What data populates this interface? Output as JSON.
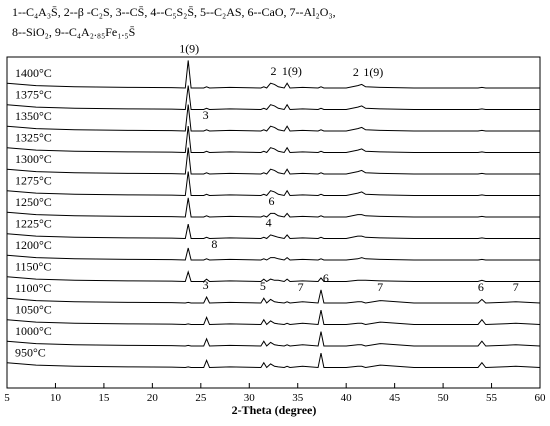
{
  "chart_data": {
    "type": "line",
    "legend_lines": [
      "1--C₄A₃S̄, 2--β -C₂S, 3--CS̄, 4--C₅S₂S̄, 5--C₂AS, 6--CaO, 7--Al₂O₃,",
      "8--SiO₂, 9--C₄A₂.₈₅Fe₁.₅S̄"
    ],
    "x_label": "2-Theta (degree)",
    "xlim": [
      5,
      60
    ],
    "xticks": [
      5,
      10,
      15,
      20,
      25,
      30,
      35,
      40,
      45,
      50,
      55,
      60
    ],
    "color": "#000000",
    "x": [
      5,
      8,
      12,
      18,
      22,
      23.4,
      23.7,
      24.0,
      25.3,
      25.6,
      25.9,
      28,
      31.2,
      31.5,
      31.8,
      32.2,
      32.6,
      33.0,
      33.6,
      33.9,
      34.2,
      35.5,
      37.1,
      37.4,
      37.7,
      40,
      41.2,
      41.6,
      42.0,
      43.5,
      47,
      53.6,
      54.0,
      54.4,
      57.5,
      60
    ],
    "series": [
      {
        "name": "1400°C",
        "values": [
          4,
          2,
          1,
          0.5,
          0.3,
          0,
          23,
          0,
          0,
          1,
          0,
          0.5,
          0,
          1,
          0,
          4,
          3,
          1,
          0,
          4,
          0,
          0.5,
          0,
          1,
          0,
          0,
          2,
          3,
          1,
          0.5,
          0,
          0,
          0.5,
          0,
          0,
          0
        ],
        "peak_labels": [
          {
            "text": "1(9)",
            "x": 23.8
          },
          {
            "text": "2",
            "x": 32.5
          },
          {
            "text": "1(9)",
            "x": 34.4
          },
          {
            "text": "2",
            "x": 41.0
          },
          {
            "text": "1(9)",
            "x": 42.8
          }
        ]
      },
      {
        "name": "1375°C",
        "values": [
          4,
          2,
          1,
          0.5,
          0.3,
          0,
          20,
          0,
          0,
          1,
          0,
          0.5,
          0,
          1,
          0,
          4,
          3,
          1,
          0,
          4,
          0,
          0.5,
          0,
          1,
          0,
          0,
          2,
          3,
          1,
          0.5,
          0,
          0,
          0.5,
          0,
          0,
          0
        ],
        "peak_labels": []
      },
      {
        "name": "1350°C",
        "values": [
          4,
          2,
          1,
          0.5,
          0.3,
          0,
          22,
          0,
          0,
          1,
          0,
          0.5,
          0,
          1,
          0,
          4,
          3,
          1,
          0,
          4,
          0,
          0.5,
          0,
          1,
          0,
          0,
          2,
          3,
          1,
          0.5,
          0,
          0,
          0.5,
          0,
          0,
          0
        ],
        "peak_labels": [
          {
            "text": "3",
            "x": 25.5
          }
        ]
      },
      {
        "name": "1325°C",
        "values": [
          4,
          2,
          1,
          0.5,
          0.3,
          0,
          22,
          0,
          0,
          1,
          0,
          0.5,
          0,
          1,
          0,
          4,
          3,
          1,
          0,
          4,
          0,
          0.5,
          0,
          1,
          0,
          0,
          2,
          3,
          1,
          0.5,
          0,
          0,
          0.5,
          0,
          0,
          0
        ],
        "peak_labels": []
      },
      {
        "name": "1300°C",
        "values": [
          4,
          2,
          1,
          0.5,
          0.3,
          0,
          22,
          0,
          0,
          1,
          0,
          0.5,
          0,
          1,
          0,
          4,
          3,
          1,
          0,
          4,
          0,
          0.5,
          0,
          1,
          0,
          0,
          2,
          3,
          1,
          0.5,
          0,
          0,
          0.5,
          0,
          0,
          0
        ],
        "peak_labels": []
      },
      {
        "name": "1275°C",
        "values": [
          4,
          2,
          1,
          0.5,
          0.3,
          0,
          20,
          0,
          0,
          1,
          0,
          0.5,
          0,
          1,
          0,
          4,
          3,
          1,
          0,
          4,
          0,
          0.5,
          0,
          1,
          0,
          0,
          2,
          3,
          1,
          0.5,
          0,
          0,
          0.5,
          0,
          0,
          0
        ],
        "peak_labels": []
      },
      {
        "name": "1250°C",
        "values": [
          4,
          2,
          1,
          0.5,
          0.3,
          0,
          16,
          0,
          0,
          1,
          0,
          0.5,
          0,
          1,
          0,
          3,
          3,
          1,
          0,
          3,
          0,
          0.5,
          0,
          1,
          0,
          0,
          2,
          2,
          1,
          0.5,
          0,
          0,
          0.5,
          0,
          0,
          0
        ],
        "peak_labels": [
          {
            "text": "6",
            "x": 32.3
          }
        ]
      },
      {
        "name": "1225°C",
        "values": [
          4,
          2,
          1,
          0.5,
          0.3,
          0,
          12,
          0,
          0,
          1,
          0,
          0.5,
          0,
          1,
          0,
          3,
          2,
          1,
          0,
          3,
          0,
          0.5,
          0,
          1,
          0,
          0,
          2,
          2,
          1,
          0.5,
          0,
          0,
          0.5,
          0,
          0,
          0
        ],
        "peak_labels": [
          {
            "text": "4",
            "x": 32.0
          }
        ]
      },
      {
        "name": "1200°C",
        "values": [
          4,
          2,
          1,
          0.5,
          0.3,
          0,
          10,
          0,
          0,
          1,
          0,
          0.5,
          0,
          1,
          0,
          2,
          2,
          1,
          0,
          2,
          0,
          0.5,
          0,
          1,
          0,
          0,
          1,
          2,
          1,
          0.5,
          0,
          0,
          0.5,
          0,
          0,
          0
        ],
        "peak_labels": [
          {
            "text": "8",
            "x": 26.4
          }
        ]
      },
      {
        "name": "1150°C",
        "values": [
          4,
          2,
          1,
          0.5,
          0.3,
          0,
          8,
          0,
          0,
          2,
          0,
          0.5,
          0,
          2,
          0,
          2,
          1,
          1,
          0,
          2,
          0,
          0.5,
          0,
          3,
          0,
          0,
          1,
          1,
          1,
          0.5,
          0,
          0,
          1,
          0,
          0,
          0
        ],
        "peak_labels": []
      },
      {
        "name": "1100°C",
        "values": [
          4,
          2,
          1,
          0.5,
          0.3,
          0,
          0.5,
          0,
          0,
          5,
          0,
          0.5,
          0,
          4,
          0,
          3,
          1,
          0.5,
          0,
          1,
          0,
          1,
          0,
          11,
          0,
          0,
          1,
          1,
          0,
          2,
          0,
          0,
          3,
          0,
          1,
          0
        ],
        "peak_labels": [
          {
            "text": "3",
            "x": 25.5
          },
          {
            "text": "5",
            "x": 31.4
          },
          {
            "text": "7",
            "x": 35.3
          },
          {
            "text": "6",
            "x": 37.9
          },
          {
            "text": "7",
            "x": 43.5
          },
          {
            "text": "6",
            "x": 53.9
          },
          {
            "text": "7",
            "x": 57.5
          }
        ]
      },
      {
        "name": "1050°C",
        "values": [
          4,
          2,
          1,
          0.5,
          0.3,
          0,
          0.5,
          0,
          0,
          6,
          0,
          0.5,
          0,
          4,
          0,
          3,
          1,
          0.5,
          0,
          1,
          0,
          1,
          0,
          12,
          0,
          0,
          1,
          1,
          0,
          2,
          0,
          0,
          4,
          0,
          1,
          0
        ],
        "peak_labels": []
      },
      {
        "name": "1000°C",
        "values": [
          4,
          2,
          1,
          0.5,
          0.3,
          0,
          0.5,
          0,
          0,
          6,
          0,
          0.5,
          0,
          4,
          0,
          3,
          1,
          0.5,
          0,
          1,
          0,
          1,
          0,
          12,
          0,
          0,
          1,
          1,
          0,
          2,
          0,
          0,
          4,
          0,
          1,
          0
        ],
        "peak_labels": []
      },
      {
        "name": "950°C",
        "values": [
          4,
          2,
          1,
          0.5,
          0.3,
          0,
          0.5,
          0,
          0,
          6,
          0,
          0.5,
          0,
          4,
          0,
          3,
          1,
          0.5,
          0,
          1,
          0,
          1,
          0,
          12,
          0,
          0,
          1,
          1,
          0,
          2,
          0,
          0,
          4,
          0,
          1,
          0
        ],
        "peak_labels": []
      }
    ]
  }
}
